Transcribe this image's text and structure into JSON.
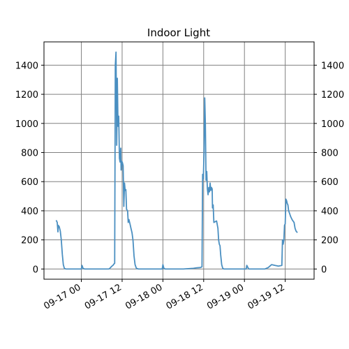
{
  "chart_data": {
    "type": "line",
    "title": "Indoor Light",
    "xlabel": "",
    "ylabel": "",
    "x_tick_labels": [
      "09-17 00",
      "09-17 12",
      "09-18 00",
      "09-18 12",
      "09-19 00",
      "09-19 12"
    ],
    "x_tick_hours": [
      0,
      12,
      24,
      36,
      48,
      60
    ],
    "xlim_hours": [
      -11,
      68.5
    ],
    "y_ticks": [
      0,
      200,
      400,
      600,
      800,
      1000,
      1200,
      1400
    ],
    "ylim": [
      -70,
      1560
    ],
    "grid": true,
    "right_axis_duplicate": true,
    "series": [
      {
        "color": "#4a8fc1",
        "points": [
          [
            -7.4,
            335
          ],
          [
            -7.1,
            320
          ],
          [
            -6.9,
            255
          ],
          [
            -6.8,
            300
          ],
          [
            -6.5,
            290
          ],
          [
            -6.2,
            260
          ],
          [
            -5.9,
            200
          ],
          [
            -5.6,
            100
          ],
          [
            -5.3,
            30
          ],
          [
            -5.0,
            5
          ],
          [
            -4.5,
            0
          ],
          [
            -2,
            0
          ],
          [
            0,
            0
          ],
          [
            0.2,
            25
          ],
          [
            0.5,
            5
          ],
          [
            1,
            0
          ],
          [
            6,
            0
          ],
          [
            8,
            0
          ],
          [
            8.3,
            3
          ],
          [
            8.6,
            10
          ],
          [
            9.0,
            20
          ],
          [
            9.3,
            25
          ],
          [
            9.6,
            35
          ],
          [
            9.8,
            40
          ],
          [
            10.0,
            1400
          ],
          [
            10.2,
            1490
          ],
          [
            10.4,
            850
          ],
          [
            10.6,
            1310
          ],
          [
            10.8,
            980
          ],
          [
            11.0,
            1050
          ],
          [
            11.2,
            760
          ],
          [
            11.4,
            735
          ],
          [
            11.6,
            830
          ],
          [
            11.7,
            680
          ],
          [
            11.9,
            740
          ],
          [
            12.1,
            730
          ],
          [
            12.3,
            710
          ],
          [
            12.5,
            430
          ],
          [
            12.7,
            590
          ],
          [
            12.9,
            540
          ],
          [
            13.1,
            545
          ],
          [
            13.3,
            410
          ],
          [
            13.6,
            400
          ],
          [
            13.8,
            320
          ],
          [
            14.0,
            340
          ],
          [
            14.3,
            310
          ],
          [
            14.6,
            280
          ],
          [
            14.9,
            250
          ],
          [
            15.2,
            200
          ],
          [
            15.5,
            90
          ],
          [
            15.8,
            30
          ],
          [
            16.2,
            5
          ],
          [
            16.8,
            0
          ],
          [
            20,
            0
          ],
          [
            23.8,
            0
          ],
          [
            24.0,
            30
          ],
          [
            24.3,
            5
          ],
          [
            24.7,
            0
          ],
          [
            28,
            0
          ],
          [
            30,
            0
          ],
          [
            33,
            5
          ],
          [
            34,
            8
          ],
          [
            35,
            10
          ],
          [
            35.5,
            15
          ],
          [
            35.7,
            650
          ],
          [
            35.9,
            620
          ],
          [
            36.1,
            800
          ],
          [
            36.3,
            1175
          ],
          [
            36.5,
            1000
          ],
          [
            36.7,
            610
          ],
          [
            36.9,
            670
          ],
          [
            37.1,
            550
          ],
          [
            37.3,
            510
          ],
          [
            37.5,
            560
          ],
          [
            37.7,
            530
          ],
          [
            37.9,
            590
          ],
          [
            38.1,
            540
          ],
          [
            38.3,
            560
          ],
          [
            38.5,
            550
          ],
          [
            38.6,
            420
          ],
          [
            38.8,
            440
          ],
          [
            39.0,
            320
          ],
          [
            39.4,
            325
          ],
          [
            39.8,
            330
          ],
          [
            40.2,
            280
          ],
          [
            40.4,
            200
          ],
          [
            40.6,
            170
          ],
          [
            40.8,
            160
          ],
          [
            41.0,
            100
          ],
          [
            41.3,
            30
          ],
          [
            41.6,
            5
          ],
          [
            42,
            0
          ],
          [
            45,
            0
          ],
          [
            46,
            0
          ],
          [
            48.5,
            0
          ],
          [
            48.7,
            25
          ],
          [
            49.0,
            10
          ],
          [
            49.3,
            0
          ],
          [
            52,
            0
          ],
          [
            54,
            0
          ],
          [
            55,
            10
          ],
          [
            55.5,
            20
          ],
          [
            56,
            30
          ],
          [
            57,
            25
          ],
          [
            58,
            20
          ],
          [
            59,
            25
          ],
          [
            59.2,
            200
          ],
          [
            59.4,
            170
          ],
          [
            59.6,
            200
          ],
          [
            59.8,
            300
          ],
          [
            60.0,
            310
          ],
          [
            60.2,
            480
          ],
          [
            60.4,
            470
          ],
          [
            60.6,
            450
          ],
          [
            60.8,
            440
          ],
          [
            61.0,
            400
          ],
          [
            61.3,
            380
          ],
          [
            61.6,
            360
          ],
          [
            62.0,
            340
          ],
          [
            62.3,
            330
          ],
          [
            62.6,
            320
          ],
          [
            62.9,
            280
          ],
          [
            63.2,
            260
          ],
          [
            63.6,
            250
          ]
        ]
      }
    ]
  }
}
